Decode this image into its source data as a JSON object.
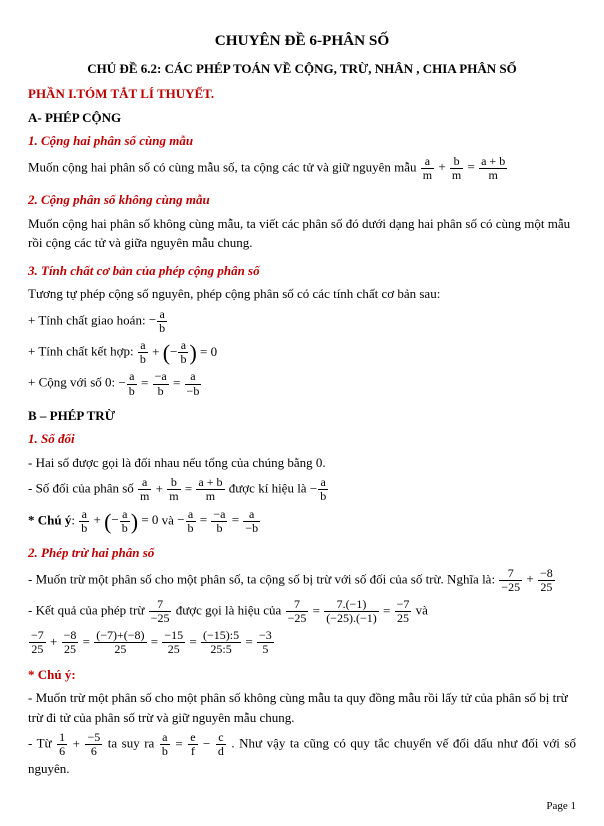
{
  "title_main": "CHUYÊN ĐỀ 6-PHÂN SỐ",
  "title_sub": "CHỦ ĐỀ 6.2: CÁC PHÉP TOÁN VỀ CỘNG, TRỪ, NHÂN , CHIA PHÂN SỐ",
  "phan1": "PHẦN I.TÓM TẮT LÍ THUYẾT.",
  "A_heading": "A- PHÉP CỘNG",
  "A1_heading": "1. Cộng hai phân số cùng mẫu",
  "A1_text": "Muốn cộng hai phân số có cùng mẫu số, ta cộng các tử và giữ nguyên mẫu",
  "A2_heading": "2. Cộng phân số không cùng mẫu",
  "A2_text": "Muốn cộng hai phân số không cùng mẫu, ta viết các phân số đó dưới dạng hai phân số có cùng một mẫu rồi cộng các tử và giữa nguyên mẫu chung.",
  "A3_heading": "3. Tính chất cơ bản của phép cộng phân số",
  "A3_text": "Tương tự phép cộng số nguyên, phép cộng phân số có các tính chất cơ bản sau:",
  "A3_giao_hoan": "+ Tính chất giao hoán:",
  "A3_ket_hop": "+ Tính chất kết hợp:",
  "A3_cong_0": "+ Cộng với số 0:",
  "B_heading": "B – PHÉP TRỪ",
  "B1_heading": "1. Số đối",
  "B1_text1": "- Hai số được gọi là đối nhau nếu tổng của chúng bằng 0.",
  "B1_text2a": "- Số đối của phân số",
  "B1_text2b": "được kí hiệu là",
  "chu_y_label": "* Chú ý",
  "chu_y_va": " và ",
  "B2_heading": "2. Phép trừ hai phân số",
  "B2_text1a": "- Muốn trừ một phân số cho một phân số, ta cộng số bị trừ với số đối của số trừ. Nghĩa là:",
  "B2_text2a": "- Kết quả của phép trừ",
  "B2_text2b": "được gọi là hiệu của",
  "B2_text2c": " và",
  "chu_y2_label": "* Chú ý:",
  "chu_y2_text": "- Muốn trừ một phân số cho một phân số không cùng mẫu ta quy đồng mẫu rồi lấy tử của phân số bị trừ trừ đi tử của phân số trừ và giữ nguyên mẫu chung.",
  "chu_y3a": "- Từ",
  "chu_y3b": "ta suy ra",
  "chu_y3c": ". Như vậy ta cũng có quy tắc chuyển vế đổi dấu như đối với số nguyên.",
  "footer": "Page 1",
  "fracs": {
    "a_m": {
      "n": "a",
      "d": "m"
    },
    "b_m": {
      "n": "b",
      "d": "m"
    },
    "ab_m": {
      "n": "a + b",
      "d": "m"
    },
    "neg_a_b": {
      "n": "a",
      "d": "b"
    },
    "a_b": {
      "n": "a",
      "d": "b"
    },
    "neg_a_over_b": {
      "n": "−a",
      "d": "b"
    },
    "a_over_neg_b": {
      "n": "a",
      "d": "−b"
    },
    "seven_n25": {
      "n": "7",
      "d": "−25"
    },
    "n8_25": {
      "n": "−8",
      "d": "25"
    },
    "seven_n1": {
      "n": "7.(−1)",
      "d": "(−25).(−1)"
    },
    "n7_25": {
      "n": "−7",
      "d": "25"
    },
    "n7_p_n8_25": {
      "n": "(−7)+(−8)",
      "d": "25"
    },
    "n15_25": {
      "n": "−15",
      "d": "25"
    },
    "n15d5_25d5": {
      "n": "(−15):5",
      "d": "25:5"
    },
    "n3_5": {
      "n": "−3",
      "d": "5"
    },
    "one_six": {
      "n": "1",
      "d": "6"
    },
    "neg5_6": {
      "n": "−5",
      "d": "6"
    },
    "a_b2": {
      "n": "a",
      "d": "b"
    },
    "e_f": {
      "n": "e",
      "d": "f"
    },
    "c_d": {
      "n": "c",
      "d": "d"
    }
  }
}
